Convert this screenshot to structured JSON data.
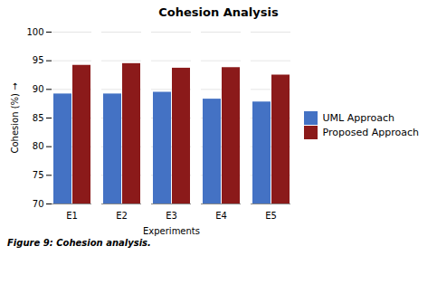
{
  "chart_data": {
    "type": "bar",
    "title": "Cohesion Analysis",
    "xlabel": "Experiments",
    "ylabel": "Cohesion (%)",
    "categories": [
      "E1",
      "E2",
      "E3",
      "E4",
      "E5"
    ],
    "series": [
      {
        "name": "UML Approach",
        "color": "#4472C4",
        "values": [
          89.2,
          89.2,
          89.5,
          88.3,
          87.8
        ]
      },
      {
        "name": "Proposed Approach",
        "color": "#8B1A1A",
        "values": [
          94.2,
          94.5,
          93.7,
          93.8,
          92.5
        ]
      }
    ],
    "ylim": [
      70,
      100
    ],
    "yticks": [
      70,
      75,
      80,
      85,
      90,
      95,
      100
    ],
    "grid": true,
    "legend": "right",
    "caption": "Figure 9:  Cohesion analysis."
  }
}
